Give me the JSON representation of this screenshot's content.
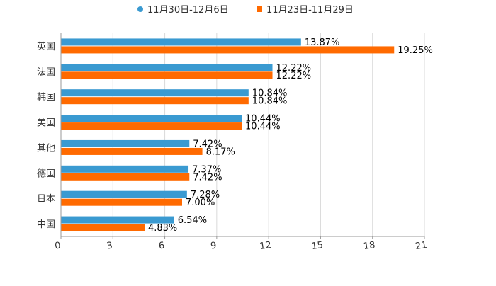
{
  "chart_data": {
    "type": "bar",
    "orientation": "horizontal",
    "categories": [
      "英国",
      "法国",
      "韩国",
      "美国",
      "其他",
      "德国",
      "日本",
      "中国"
    ],
    "series": [
      {
        "name": "11月30日-12月6日",
        "color": "#3a9ad1",
        "values": [
          13.87,
          12.22,
          10.84,
          10.44,
          7.42,
          7.37,
          7.28,
          6.54
        ],
        "labels": [
          "13.87%",
          "12.22%",
          "10.84%",
          "10.44%",
          "7.42%",
          "7.37%",
          "7.28%",
          "6.54%"
        ]
      },
      {
        "name": "11月23日-11月29日",
        "color": "#ff6a00",
        "values": [
          19.25,
          12.22,
          10.84,
          10.44,
          8.17,
          7.42,
          7.0,
          4.83
        ],
        "labels": [
          "19.25%",
          "12.22%",
          "10.84%",
          "10.44%",
          "8.17%",
          "7.42%",
          "7.00%",
          "4.83%"
        ]
      }
    ],
    "xticks": [
      "0",
      "3",
      "6",
      "9",
      "12",
      "15",
      "18",
      "21"
    ],
    "xlim": [
      0,
      21
    ],
    "grid": true,
    "legend_position": "top-center"
  }
}
